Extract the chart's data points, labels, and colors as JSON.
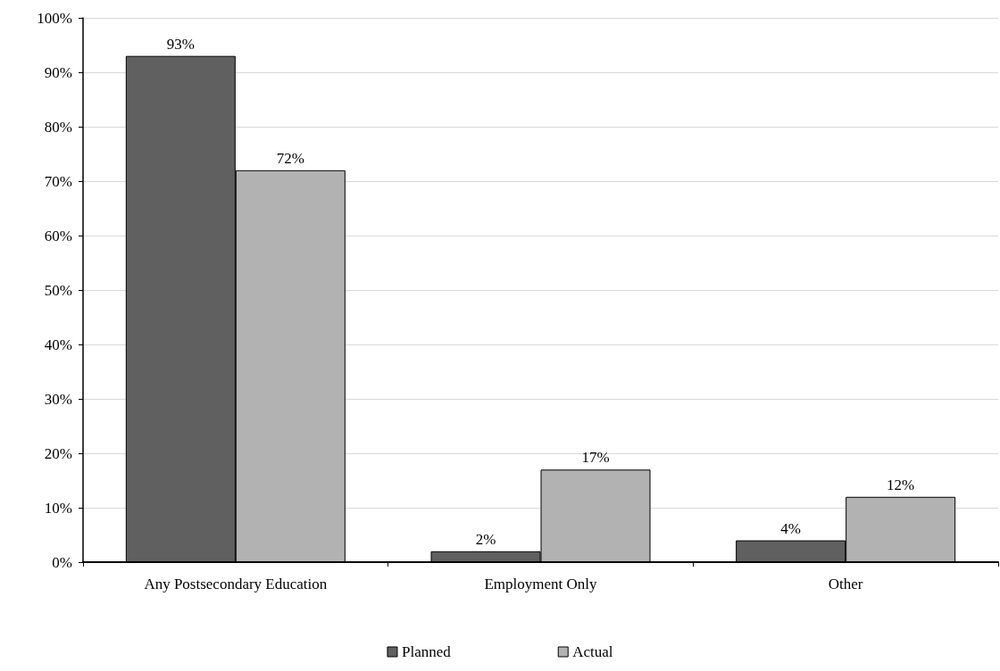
{
  "chart_data": {
    "type": "bar",
    "categories": [
      "Any Postsecondary Education",
      "Employment Only",
      "Other"
    ],
    "series": [
      {
        "name": "Planned",
        "color": "#606060",
        "values": [
          93,
          2,
          4
        ],
        "value_labels": [
          "93%",
          "2%",
          "4%"
        ]
      },
      {
        "name": "Actual",
        "color": "#b2b2b2",
        "values": [
          72,
          17,
          12
        ],
        "value_labels": [
          "72%",
          "17%",
          "12%"
        ]
      }
    ],
    "ylim": [
      0,
      100
    ],
    "yticks": [
      {
        "value": 0,
        "label": "0%"
      },
      {
        "value": 10,
        "label": "10%"
      },
      {
        "value": 20,
        "label": "20%"
      },
      {
        "value": 30,
        "label": "30%"
      },
      {
        "value": 40,
        "label": "40%"
      },
      {
        "value": 50,
        "label": "50%"
      },
      {
        "value": 60,
        "label": "60%"
      },
      {
        "value": 70,
        "label": "70%"
      },
      {
        "value": 80,
        "label": "80%"
      },
      {
        "value": 90,
        "label": "90%"
      },
      {
        "value": 100,
        "label": "100%"
      }
    ],
    "grid": "y",
    "legend": "bottom"
  }
}
